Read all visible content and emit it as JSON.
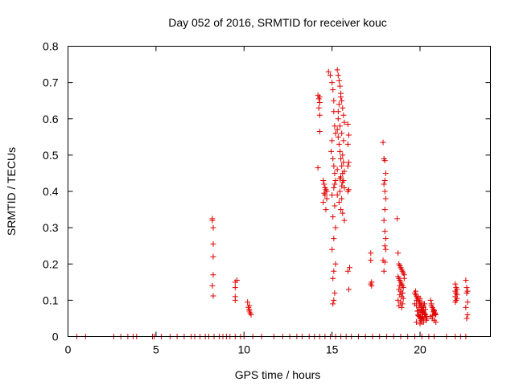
{
  "chart_data": {
    "type": "scatter",
    "title": "Day 052 of 2016, SRMTID for receiver kouc",
    "xlabel": "GPS time / hours",
    "ylabel": "SRMTID / TECUs",
    "xlim": [
      0,
      24
    ],
    "ylim": [
      0,
      0.8
    ],
    "xticks": [
      0,
      5,
      10,
      15,
      20
    ],
    "yticks": [
      0,
      0.1,
      0.2,
      0.3,
      0.4,
      0.5,
      0.6,
      0.7,
      0.8
    ],
    "grid": false,
    "marker": "+",
    "series_color": "#e00000",
    "series": [
      {
        "name": "SRMTID",
        "x": [
          0.5,
          1.0,
          2.6,
          3.0,
          3.4,
          3.7,
          3.9,
          4.8,
          4.9,
          5.3,
          5.8,
          6.2,
          6.6,
          7.0,
          7.2,
          7.5,
          7.8,
          8.0,
          8.3,
          8.6,
          8.8,
          9.0,
          9.2,
          9.5,
          9.8,
          10.0,
          10.5,
          11.0,
          11.7,
          12.2,
          12.6,
          13.0,
          13.3,
          13.7,
          14.0,
          14.3,
          14.6,
          14.9,
          15.2,
          15.5,
          15.8,
          16.1,
          16.5,
          16.9,
          17.3,
          17.7,
          18.1,
          18.5,
          18.9,
          19.3,
          19.7,
          20.1,
          20.5,
          20.8,
          21.5,
          22.0,
          22.3,
          22.6,
          8.2,
          8.2,
          8.25,
          8.25,
          8.25,
          8.25,
          8.2,
          8.25,
          9.5,
          9.5,
          9.5,
          9.5,
          9.6,
          10.2,
          10.25,
          10.3,
          10.3,
          10.35,
          10.4,
          10.3,
          14.2,
          14.25,
          14.3,
          14.25,
          14.3,
          14.3,
          14.2,
          14.3,
          14.5,
          14.55,
          14.6,
          14.65,
          14.7,
          14.55,
          14.6,
          14.7,
          14.5,
          14.65,
          14.8,
          14.9,
          15.0,
          15.05,
          15.1,
          15.1,
          15.15,
          15.2,
          15.0,
          14.95,
          15.05,
          15.1,
          15.15,
          15.2,
          15.1,
          15.0,
          15.15,
          15.05,
          15.2,
          15.1,
          15.0,
          15.2,
          15.1,
          15.05,
          15.15,
          15.1,
          15.05,
          15.15,
          15.3,
          15.35,
          15.4,
          15.45,
          15.5,
          15.55,
          15.6,
          15.65,
          15.7,
          15.3,
          15.35,
          15.4,
          15.45,
          15.5,
          15.55,
          15.6,
          15.65,
          15.7,
          15.3,
          15.4,
          15.5,
          15.6,
          15.7,
          15.35,
          15.45,
          15.55,
          15.65,
          15.3,
          15.5,
          15.6,
          15.45,
          15.55,
          15.35,
          15.4,
          15.5,
          15.6,
          15.65,
          15.7,
          15.45,
          15.55,
          15.9,
          15.95,
          15.9,
          15.95,
          15.9,
          15.95,
          15.9,
          16.0,
          15.9,
          15.95,
          17.2,
          17.2,
          17.25,
          17.2,
          17.25,
          17.9,
          17.95,
          18.0,
          18.05,
          18.0,
          17.95,
          18.0,
          18.05,
          18.0,
          17.95,
          18.0,
          18.05,
          18.0,
          17.9,
          18.0,
          17.95,
          18.05,
          18.7,
          18.75,
          18.8,
          18.85,
          18.9,
          18.95,
          19.0,
          19.05,
          19.1,
          18.75,
          18.8,
          18.85,
          18.9,
          18.95,
          19.0,
          19.05,
          18.8,
          18.9,
          19.0,
          18.85,
          18.95,
          19.05,
          18.75,
          18.9,
          19.0,
          18.8,
          18.95,
          19.1,
          18.85,
          19.0,
          19.7,
          19.75,
          19.8,
          19.85,
          19.9,
          19.95,
          20.0,
          20.05,
          20.1,
          20.15,
          20.2,
          20.25,
          20.3,
          20.35,
          20.4,
          19.75,
          19.8,
          19.85,
          19.9,
          19.95,
          20.0,
          20.05,
          20.1,
          20.15,
          20.2,
          20.25,
          20.3,
          19.8,
          19.9,
          20.0,
          20.1,
          20.2,
          20.3,
          19.85,
          19.95,
          20.05,
          20.15,
          20.25,
          19.9,
          20.0,
          20.1,
          20.2,
          19.95,
          20.05,
          20.15,
          19.7,
          20.35,
          19.8,
          20.0,
          20.2,
          20.6,
          20.65,
          20.7,
          20.75,
          20.8,
          20.85,
          20.9,
          20.6,
          20.7,
          20.8,
          20.9,
          20.65,
          20.75,
          20.85,
          20.7,
          20.8,
          22.0,
          22.05,
          22.1,
          22.0,
          22.05,
          22.1,
          22.0,
          22.1,
          22.05,
          22.0,
          22.6,
          22.65,
          22.7,
          22.65,
          22.7,
          22.6,
          22.7,
          22.65
        ],
        "y": [
          0,
          0,
          0,
          0,
          0,
          0,
          0,
          0,
          0,
          0,
          0,
          0,
          0,
          0,
          0,
          0,
          0,
          0,
          0,
          0,
          0,
          0,
          0,
          0,
          0,
          0,
          0,
          0,
          0,
          0,
          0,
          0,
          0,
          0,
          0,
          0,
          0,
          0,
          0,
          0,
          0,
          0,
          0,
          0,
          0,
          0,
          0,
          0,
          0,
          0,
          0,
          0,
          0,
          0,
          0,
          0,
          0,
          0,
          0.325,
          0.32,
          0.3,
          0.255,
          0.22,
          0.17,
          0.14,
          0.112,
          0.15,
          0.135,
          0.11,
          0.1,
          0.155,
          0.095,
          0.08,
          0.075,
          0.07,
          0.065,
          0.06,
          0.085,
          0.665,
          0.655,
          0.645,
          0.63,
          0.61,
          0.565,
          0.465,
          0.66,
          0.43,
          0.42,
          0.41,
          0.405,
          0.4,
          0.395,
          0.39,
          0.38,
          0.37,
          0.35,
          0.73,
          0.72,
          0.7,
          0.68,
          0.65,
          0.62,
          0.58,
          0.56,
          0.54,
          0.51,
          0.49,
          0.47,
          0.45,
          0.43,
          0.41,
          0.39,
          0.36,
          0.33,
          0.3,
          0.27,
          0.24,
          0.2,
          0.18,
          0.16,
          0.12,
          0.1,
          0.09,
          0.42,
          0.735,
          0.72,
          0.705,
          0.69,
          0.67,
          0.65,
          0.63,
          0.61,
          0.59,
          0.57,
          0.55,
          0.53,
          0.51,
          0.49,
          0.47,
          0.45,
          0.43,
          0.41,
          0.39,
          0.37,
          0.35,
          0.34,
          0.32,
          0.6,
          0.58,
          0.56,
          0.54,
          0.46,
          0.44,
          0.425,
          0.4,
          0.38,
          0.62,
          0.64,
          0.66,
          0.5,
          0.48,
          0.455,
          0.435,
          0.415,
          0.585,
          0.555,
          0.53,
          0.48,
          0.47,
          0.405,
          0.4,
          0.19,
          0.18,
          0.13,
          0.23,
          0.21,
          0.15,
          0.145,
          0.14,
          0.535,
          0.49,
          0.485,
          0.45,
          0.43,
          0.42,
          0.4,
          0.38,
          0.35,
          0.32,
          0.29,
          0.27,
          0.25,
          0.21,
          0.205,
          0.18,
          0.24,
          0.325,
          0.23,
          0.2,
          0.195,
          0.19,
          0.185,
          0.18,
          0.175,
          0.17,
          0.165,
          0.16,
          0.155,
          0.15,
          0.145,
          0.14,
          0.135,
          0.13,
          0.125,
          0.12,
          0.115,
          0.11,
          0.105,
          0.1,
          0.095,
          0.09,
          0.085,
          0.08,
          0.16,
          0.14,
          0.12,
          0.12,
          0.115,
          0.11,
          0.105,
          0.1,
          0.095,
          0.09,
          0.085,
          0.08,
          0.075,
          0.07,
          0.065,
          0.06,
          0.055,
          0.05,
          0.125,
          0.085,
          0.07,
          0.06,
          0.055,
          0.05,
          0.045,
          0.04,
          0.065,
          0.08,
          0.09,
          0.075,
          0.1,
          0.11,
          0.105,
          0.095,
          0.085,
          0.06,
          0.07,
          0.08,
          0.075,
          0.068,
          0.062,
          0.058,
          0.055,
          0.052,
          0.048,
          0.072,
          0.066,
          0.054,
          0.09,
          0.045,
          0.04,
          0.035,
          0.04,
          0.1,
          0.085,
          0.08,
          0.075,
          0.07,
          0.065,
          0.06,
          0.055,
          0.05,
          0.045,
          0.04,
          0.09,
          0.068,
          0.062,
          0.058,
          0.072,
          0.145,
          0.135,
          0.13,
          0.125,
          0.12,
          0.115,
          0.11,
          0.105,
          0.1,
          0.095,
          0.155,
          0.135,
          0.125,
          0.12,
          0.095,
          0.08,
          0.06,
          0.05
        ]
      }
    ]
  }
}
